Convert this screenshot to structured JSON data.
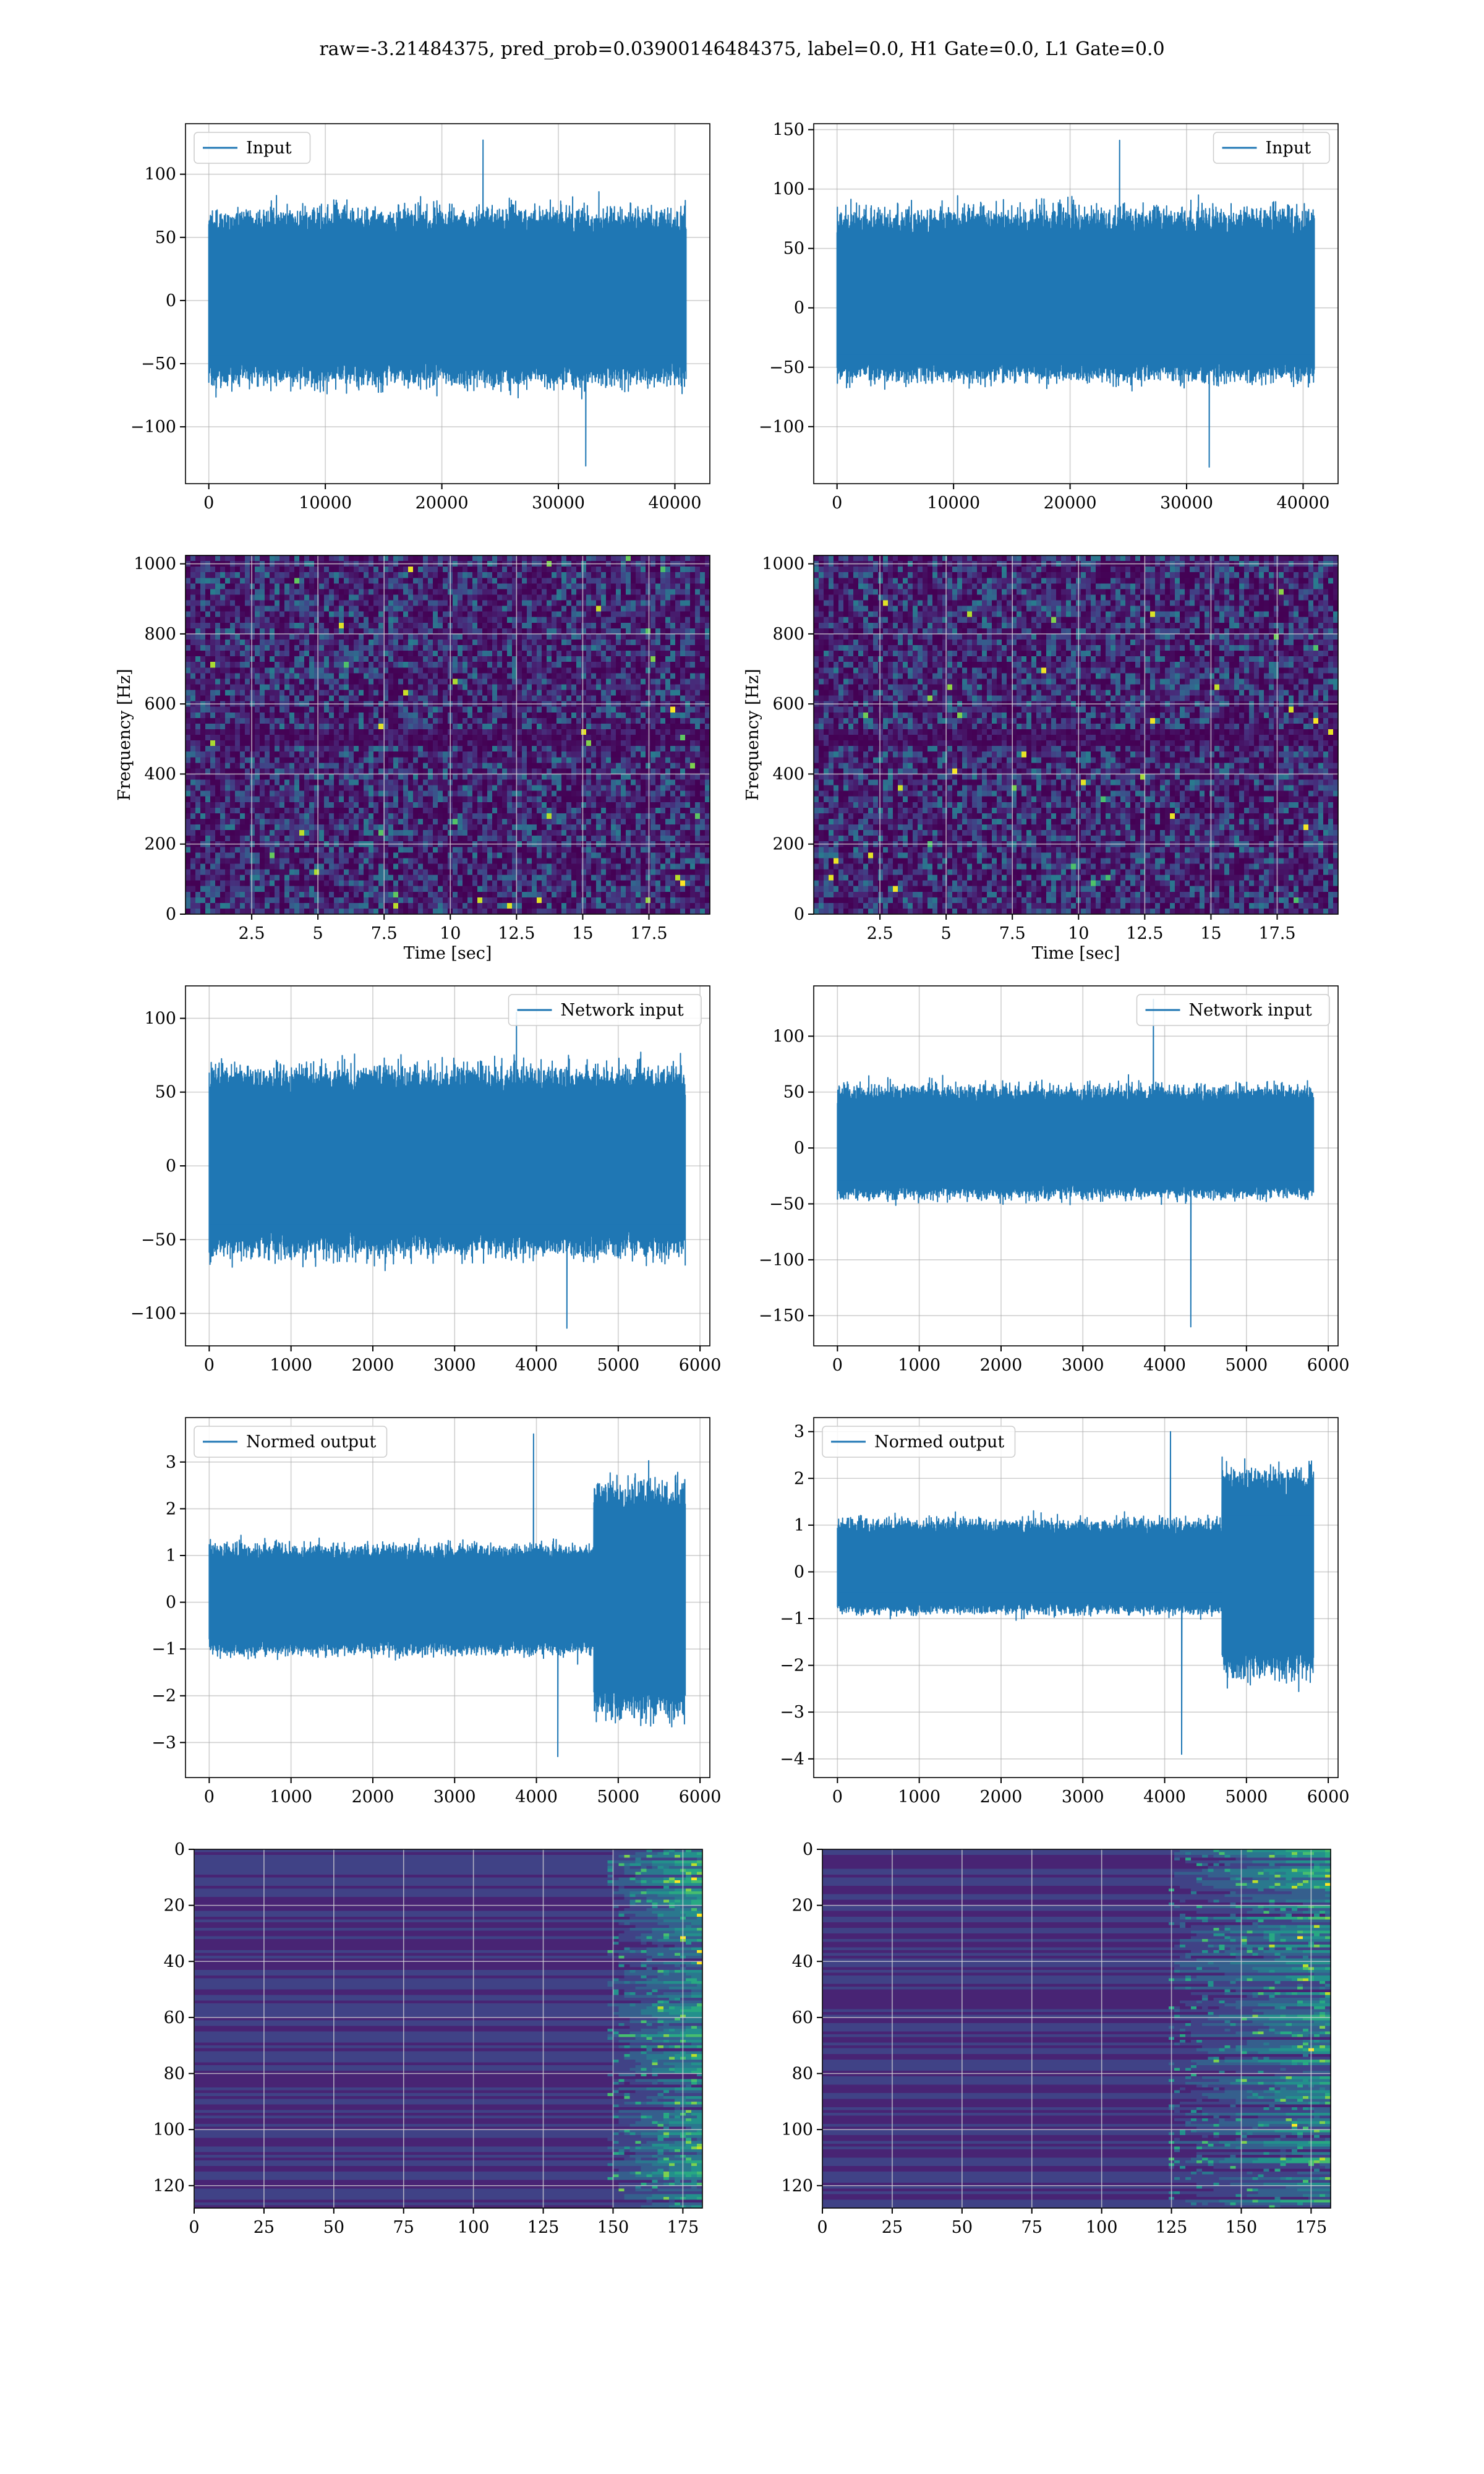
{
  "title": "raw=-3.21484375, pred_prob=0.03900146484375, label=0.0, H1 Gate=0.0, L1 Gate=0.0",
  "colors": {
    "line": "#1f77b4",
    "grid": "#b0b0b0",
    "viridis": [
      "#440154",
      "#482878",
      "#3e4989",
      "#31688e",
      "#26828e",
      "#1f9e89",
      "#35b779",
      "#6ece58",
      "#b5de2b",
      "#fde725"
    ]
  },
  "chart_data": [
    {
      "id": "input-left",
      "type": "line",
      "series": [
        {
          "name": "Input",
          "n_samples": 40960,
          "amplitude_band": [
            -60,
            65
          ],
          "max": 127,
          "min": -131
        }
      ],
      "xlim": [
        -2000,
        43000
      ],
      "ylim": [
        -145,
        140
      ],
      "xticks": [
        0,
        10000,
        20000,
        30000,
        40000
      ],
      "yticks": [
        -100,
        -50,
        0,
        50,
        100
      ],
      "legend": "upper left",
      "grid": true
    },
    {
      "id": "input-right",
      "type": "line",
      "series": [
        {
          "name": "Input",
          "n_samples": 40960,
          "amplitude_band": [
            -55,
            75
          ],
          "max": 141,
          "min": -134
        }
      ],
      "xlim": [
        -2000,
        43000
      ],
      "ylim": [
        -148,
        155
      ],
      "xticks": [
        0,
        10000,
        20000,
        30000,
        40000
      ],
      "yticks": [
        -100,
        -50,
        0,
        50,
        100,
        150
      ],
      "legend": "upper right",
      "grid": true
    },
    {
      "id": "spectrogram-left",
      "type": "heatmap",
      "xlabel": "Time [sec]",
      "ylabel": "Frequency [Hz]",
      "xlim": [
        0,
        19.8
      ],
      "ylim": [
        0,
        1024
      ],
      "xticks": [
        2.5,
        5.0,
        7.5,
        10.0,
        12.5,
        15.0,
        17.5
      ],
      "yticks": [
        0,
        200,
        400,
        600,
        800,
        1000
      ],
      "colormap": "viridis",
      "grid": true
    },
    {
      "id": "spectrogram-right",
      "type": "heatmap",
      "xlabel": "Time [sec]",
      "ylabel": "Frequency [Hz]",
      "xlim": [
        0,
        19.8
      ],
      "ylim": [
        0,
        1024
      ],
      "xticks": [
        2.5,
        5.0,
        7.5,
        10.0,
        12.5,
        15.0,
        17.5
      ],
      "yticks": [
        0,
        200,
        400,
        600,
        800,
        1000
      ],
      "colormap": "viridis",
      "grid": true
    },
    {
      "id": "network-input-left",
      "type": "line",
      "series": [
        {
          "name": "Network input",
          "n_samples": 5820,
          "amplitude_band": [
            -55,
            60
          ],
          "max": 104,
          "min": -110
        }
      ],
      "xlim": [
        -290,
        6120
      ],
      "ylim": [
        -122,
        122
      ],
      "xticks": [
        0,
        1000,
        2000,
        3000,
        4000,
        5000,
        6000
      ],
      "yticks": [
        -100,
        -50,
        0,
        50,
        100
      ],
      "legend": "upper right",
      "grid": true
    },
    {
      "id": "network-input-right",
      "type": "line",
      "series": [
        {
          "name": "Network input",
          "n_samples": 5820,
          "amplitude_band": [
            -40,
            50
          ],
          "max": 133,
          "min": -160
        }
      ],
      "xlim": [
        -290,
        6120
      ],
      "ylim": [
        -177,
        145
      ],
      "xticks": [
        0,
        1000,
        2000,
        3000,
        4000,
        5000,
        6000
      ],
      "yticks": [
        -150,
        -100,
        -50,
        0,
        50,
        100
      ],
      "legend": "upper right",
      "grid": true
    },
    {
      "id": "normed-output-left",
      "type": "line",
      "series": [
        {
          "name": "Normed output",
          "n_samples": 5820,
          "amplitude_band": [
            -1.0,
            1.1
          ],
          "burst_start": 4700,
          "burst_band": [
            -2.2,
            2.3
          ],
          "max": 3.6,
          "min": -3.3
        }
      ],
      "xlim": [
        -290,
        6120
      ],
      "ylim": [
        -3.75,
        3.95
      ],
      "xticks": [
        0,
        1000,
        2000,
        3000,
        4000,
        5000,
        6000
      ],
      "yticks": [
        -3,
        -2,
        -1,
        0,
        1,
        2,
        3
      ],
      "legend": "upper left",
      "grid": true
    },
    {
      "id": "normed-output-right",
      "type": "line",
      "series": [
        {
          "name": "Normed output",
          "n_samples": 5820,
          "amplitude_band": [
            -0.8,
            1.0
          ],
          "burst_start": 4700,
          "burst_band": [
            -2.0,
            2.0
          ],
          "max": 3.0,
          "min": -3.9
        }
      ],
      "xlim": [
        -290,
        6120
      ],
      "ylim": [
        -4.4,
        3.3
      ],
      "xticks": [
        0,
        1000,
        2000,
        3000,
        4000,
        5000,
        6000
      ],
      "yticks": [
        -4,
        -3,
        -2,
        -1,
        0,
        1,
        2,
        3
      ],
      "legend": "upper left",
      "grid": true
    },
    {
      "id": "activation-left",
      "type": "heatmap",
      "xlim": [
        0,
        182
      ],
      "ylim": [
        128,
        0
      ],
      "xticks": [
        0,
        25,
        50,
        75,
        100,
        125,
        150,
        175
      ],
      "yticks": [
        0,
        20,
        40,
        60,
        80,
        100,
        120
      ],
      "colormap": "viridis",
      "burst_column": 148,
      "grid": true
    },
    {
      "id": "activation-right",
      "type": "heatmap",
      "xlim": [
        0,
        182
      ],
      "ylim": [
        128,
        0
      ],
      "xticks": [
        0,
        25,
        50,
        75,
        100,
        125,
        150,
        175
      ],
      "yticks": [
        0,
        20,
        40,
        60,
        80,
        100,
        120
      ],
      "colormap": "viridis",
      "burst_column": 125,
      "grid": true
    }
  ]
}
